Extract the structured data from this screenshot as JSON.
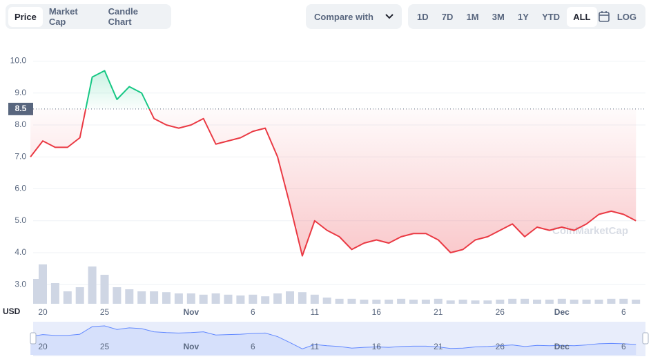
{
  "ui": {
    "tabs": [
      "Price",
      "Market Cap",
      "Candle Chart"
    ],
    "compare": "Compare with",
    "ranges": [
      "1D",
      "7D",
      "1M",
      "3M",
      "1Y",
      "YTD",
      "ALL"
    ],
    "log": "LOG",
    "currency": "USD",
    "watermark": "CoinMarketCap"
  },
  "chart_data": {
    "type": "line",
    "categories": [
      null,
      "20",
      null,
      null,
      null,
      null,
      "25",
      null,
      null,
      null,
      null,
      null,
      null,
      "Nov",
      null,
      null,
      null,
      null,
      "6",
      null,
      null,
      null,
      null,
      "11",
      null,
      null,
      null,
      null,
      "16",
      null,
      null,
      null,
      null,
      "21",
      null,
      null,
      null,
      null,
      "26",
      null,
      null,
      null,
      null,
      "Dec",
      null,
      null,
      null,
      null,
      "6",
      null
    ],
    "values": [
      7.0,
      7.5,
      7.3,
      7.3,
      7.6,
      9.5,
      9.7,
      8.8,
      9.2,
      9.0,
      8.2,
      8.0,
      7.9,
      8.0,
      8.2,
      7.4,
      7.5,
      7.6,
      7.8,
      7.9,
      7.0,
      5.5,
      3.9,
      5.0,
      4.7,
      4.5,
      4.1,
      4.3,
      4.4,
      4.3,
      4.5,
      4.6,
      4.6,
      4.4,
      4.0,
      4.1,
      4.4,
      4.5,
      4.7,
      4.9,
      4.5,
      4.8,
      4.7,
      4.8,
      4.7,
      4.9,
      5.2,
      5.3,
      5.2,
      5.0
    ],
    "volume": [
      60,
      95,
      50,
      30,
      40,
      90,
      70,
      40,
      35,
      30,
      30,
      28,
      25,
      25,
      22,
      25,
      22,
      20,
      22,
      18,
      25,
      30,
      28,
      22,
      15,
      12,
      12,
      10,
      10,
      10,
      12,
      10,
      10,
      12,
      8,
      10,
      8,
      8,
      10,
      12,
      12,
      10,
      10,
      12,
      10,
      10,
      10,
      12,
      12,
      10
    ],
    "baseline": 8.5,
    "color_up": "#16c784",
    "color_down": "#ea3943",
    "volume_color": "#cfd6e4",
    "navigator_color": "#6188ff",
    "ylim": [
      2.4,
      10.4
    ],
    "yticks": [
      {
        "value": 3,
        "label": "3.0"
      },
      {
        "value": 4,
        "label": "4.0"
      },
      {
        "value": 5,
        "label": "5.0"
      },
      {
        "value": 6,
        "label": "6.0"
      },
      {
        "value": 7,
        "label": "7.0"
      },
      {
        "value": 8,
        "label": "8.0"
      },
      {
        "value": 9,
        "label": "9.0"
      },
      {
        "value": 10,
        "label": "10.0"
      }
    ],
    "grid": true
  }
}
